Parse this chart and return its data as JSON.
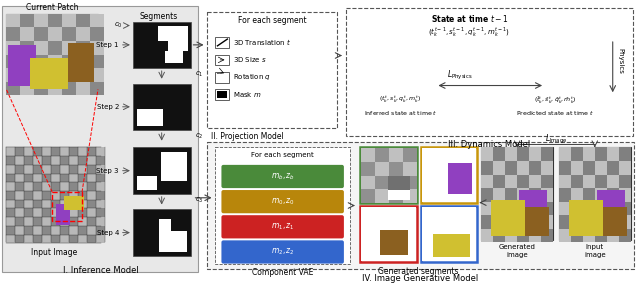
{
  "bg_color": "#e8e8e8",
  "vae_colors": [
    "#4a8a3a",
    "#b8860b",
    "#cc2222",
    "#3366cc"
  ],
  "seg_border_colors": [
    "#4a8a3a",
    "#c8960b",
    "#cc2222",
    "#3366cc"
  ],
  "section_label_I": "I. Inference Model",
  "section_label_II": "II. Projection Model",
  "section_label_III": "III. Dynamics Model",
  "section_label_IV": "IV. Image Generative Model"
}
